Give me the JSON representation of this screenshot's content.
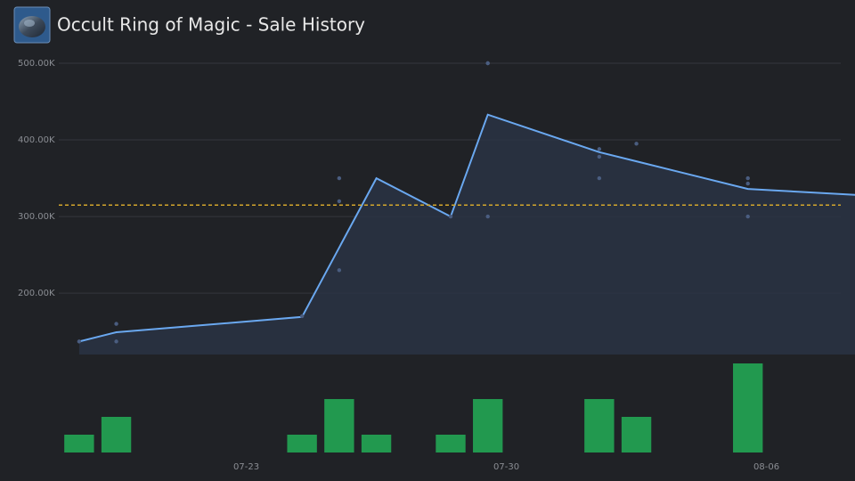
{
  "chart_data": {
    "type": "line",
    "title": "Occult Ring of Magic - Sale History",
    "xlim": [
      "07-18",
      "08-08"
    ],
    "xticks": [
      "07-23",
      "07-30",
      "08-06"
    ],
    "ylim": [
      120000,
      500000
    ],
    "yticks": [
      {
        "value": 200000,
        "label": "200.00K"
      },
      {
        "value": 300000,
        "label": "300.00K"
      },
      {
        "value": 400000,
        "label": "400.00K"
      },
      {
        "value": 500000,
        "label": "500.00K"
      }
    ],
    "y2lim": [
      0,
      5
    ],
    "grid": true,
    "reference_line": {
      "value": 315000,
      "color": "#d4a72c"
    },
    "series": [
      {
        "kind": "line",
        "color": "#6aa8f0",
        "x": [
          "07-18",
          "07-19",
          "07-24",
          "07-26",
          "07-28",
          "07-29",
          "08-01",
          "08-02",
          "08-05",
          "08-08"
        ],
        "values": [
          137000,
          149000,
          169000,
          350000,
          300000,
          433000,
          384000,
          372000,
          336000,
          328000
        ]
      },
      {
        "kind": "scatter",
        "color": "#4a5d80",
        "x": [
          "07-18",
          "07-19",
          "07-19",
          "07-24",
          "07-25",
          "07-25",
          "07-25",
          "07-28",
          "07-29",
          "07-29",
          "07-29",
          "08-01",
          "08-01",
          "08-01",
          "08-02",
          "08-05",
          "08-05",
          "08-05"
        ],
        "values": [
          137000,
          137000,
          160000,
          170000,
          230000,
          320000,
          350000,
          300000,
          300000,
          500000,
          500000,
          378000,
          388000,
          350000,
          395000,
          300000,
          343000,
          350000
        ]
      },
      {
        "kind": "bar",
        "axis": "y2",
        "color": "#22994f",
        "x": [
          "07-18",
          "07-19",
          "07-24",
          "07-25",
          "07-26",
          "07-28",
          "07-29",
          "08-01",
          "08-02",
          "08-05"
        ],
        "values": [
          1,
          2,
          1,
          3,
          1,
          1,
          3,
          3,
          2,
          5
        ]
      }
    ]
  }
}
